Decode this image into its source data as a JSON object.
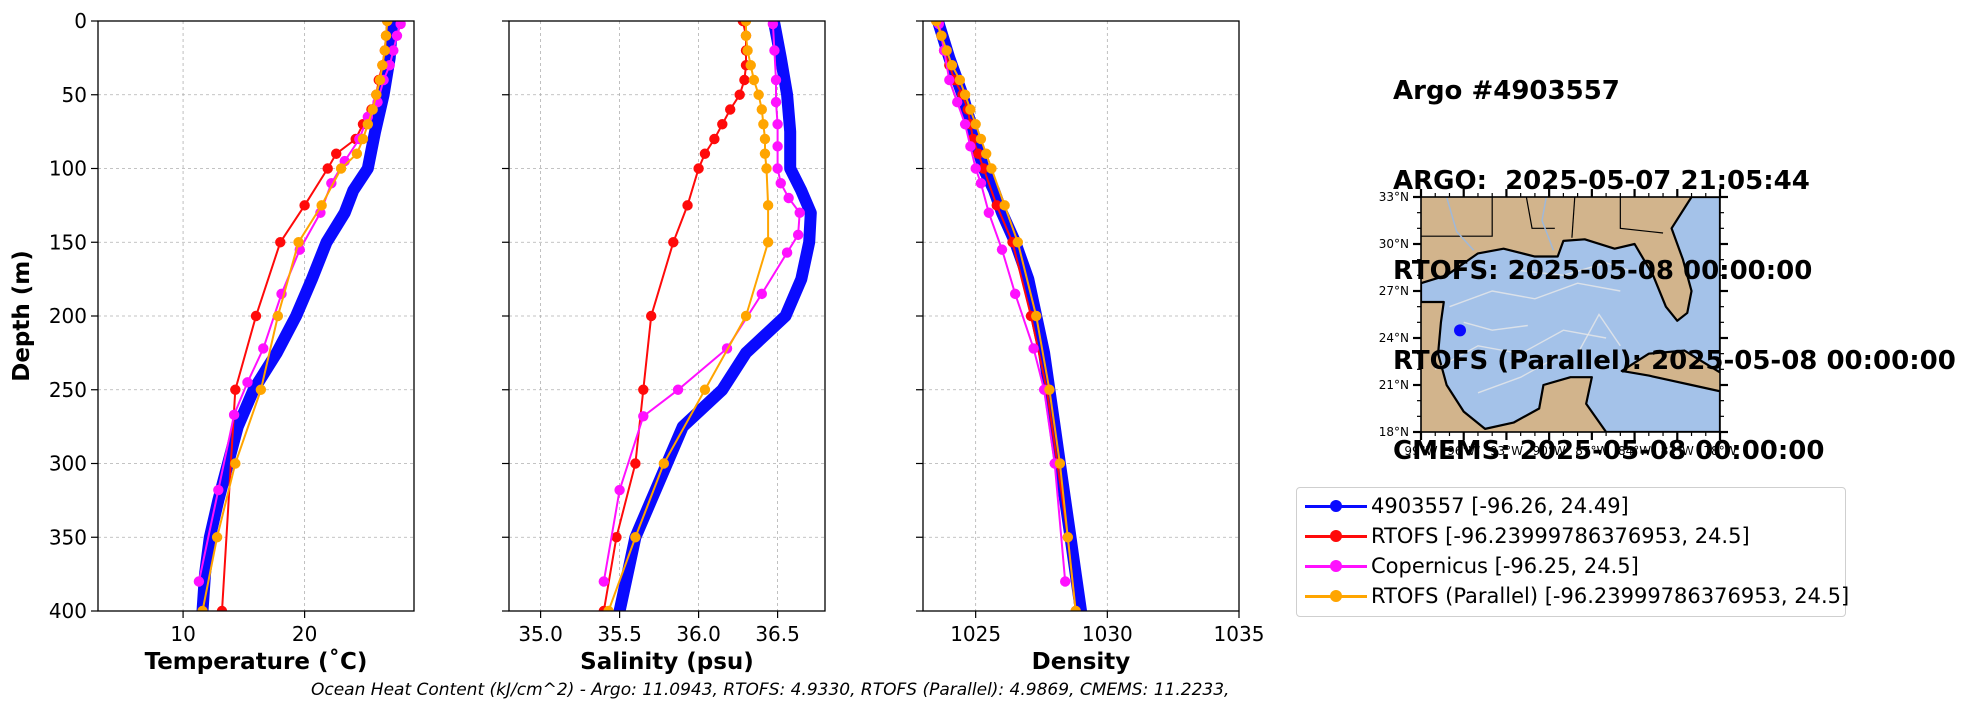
{
  "info": {
    "line1": "Argo #4903557",
    "line2": "ARGO:  2025-05-07 21:05:44",
    "line3": "RTOFS: 2025-05-08 00:00:00",
    "line4": "RTOFS (Parallel): 2025-05-08 00:00:00",
    "line5": "CMEMS: 2025-05-08 00:00:00"
  },
  "footer": "Ocean Heat Content (kJ/cm^2) - Argo: 11.0943,  RTOFS: 4.9330,  RTOFS (Parallel): 4.9869,  CMEMS: 11.2233,",
  "colors": {
    "argo": "#0a0aff",
    "rtofs": "#ff0a0a",
    "copernicus": "#ff10ff",
    "parallel": "#ffa500",
    "land": "#d2b48c",
    "water": "#a4c2e9"
  },
  "legend": [
    {
      "label": "4903557 [-96.26, 24.49]",
      "color": "#0a0aff"
    },
    {
      "label": "RTOFS [-96.23999786376953, 24.5]",
      "color": "#ff0a0a"
    },
    {
      "label": "Copernicus [-96.25, 24.5]",
      "color": "#ff10ff"
    },
    {
      "label": "RTOFS (Parallel) [-96.23999786376953, 24.5]",
      "color": "#ffa500"
    }
  ],
  "map": {
    "lat_labels": [
      "33°N",
      "30°N",
      "27°N",
      "24°N",
      "21°N",
      "18°N"
    ],
    "lon_labels": [
      "99°W",
      "96°W",
      "93°W",
      "90°W",
      "87°W",
      "84°W",
      "81°W",
      "78°W"
    ],
    "float_lon": -96.26,
    "float_lat": 24.49
  },
  "chart_data": [
    {
      "type": "line",
      "xlabel": "Temperature (˚C)",
      "ylabel": "Depth (m)",
      "xlim": [
        3,
        29
      ],
      "ylim": [
        400,
        0
      ],
      "xticks": [
        10,
        20
      ],
      "yticks": [
        0,
        50,
        100,
        150,
        200,
        250,
        300,
        350,
        400
      ],
      "grid": true,
      "series": [
        {
          "name": "4903557 [-96.26, 24.49]",
          "key": "argo",
          "dense": true,
          "x": [
            27.2,
            27.0,
            26.5,
            25.8,
            25.2,
            24.0,
            23.3,
            21.8,
            20.6,
            19.3,
            17.7,
            15.8,
            14.5,
            13.7,
            12.9,
            12.2,
            11.8,
            11.6
          ],
          "y": [
            2,
            25,
            50,
            75,
            100,
            115,
            130,
            150,
            175,
            200,
            225,
            250,
            275,
            300,
            325,
            350,
            375,
            400
          ]
        },
        {
          "name": "RTOFS [-96.23999786376953, 24.5]",
          "key": "rtofs",
          "x": [
            26.8,
            26.7,
            26.6,
            26.4,
            26.1,
            25.9,
            25.5,
            24.8,
            24.2,
            22.6,
            21.9,
            20.0,
            18.0,
            16.0,
            14.3,
            13.2
          ],
          "y": [
            0,
            10,
            20,
            30,
            40,
            50,
            60,
            70,
            80,
            90,
            100,
            125,
            150,
            200,
            250,
            400
          ]
        },
        {
          "name": "Copernicus [-96.25, 24.5]",
          "key": "copernicus",
          "x": [
            27.9,
            27.6,
            27.3,
            27.0,
            26.5,
            26.0,
            25.2,
            24.5,
            23.3,
            22.2,
            21.3,
            19.6,
            18.1,
            16.6,
            15.3,
            14.2,
            12.9,
            11.3
          ],
          "y": [
            2,
            10,
            20,
            30,
            40,
            55,
            65,
            80,
            95,
            110,
            130,
            155,
            185,
            222,
            245,
            267,
            318,
            380
          ]
        },
        {
          "name": "RTOFS (Parallel) [-96.23999786376953, 24.5]",
          "key": "parallel",
          "x": [
            26.8,
            26.7,
            26.6,
            26.4,
            26.2,
            25.9,
            25.6,
            25.2,
            24.8,
            24.3,
            23.0,
            21.4,
            19.5,
            17.8,
            16.4,
            14.3,
            12.8,
            11.6
          ],
          "y": [
            0,
            10,
            20,
            30,
            40,
            50,
            60,
            70,
            80,
            90,
            100,
            125,
            150,
            200,
            250,
            300,
            350,
            400
          ]
        }
      ]
    },
    {
      "type": "line",
      "xlabel": "Salinity (psu)",
      "ylabel": "",
      "xlim": [
        34.8,
        36.8
      ],
      "ylim": [
        400,
        0
      ],
      "xticks": [
        35.0,
        35.5,
        36.0,
        36.5
      ],
      "yticks": [
        0,
        50,
        100,
        150,
        200,
        250,
        300,
        350,
        400
      ],
      "grid": true,
      "series": [
        {
          "name": "4903557 [-96.26, 24.49]",
          "key": "argo",
          "dense": true,
          "x": [
            36.48,
            36.52,
            36.56,
            36.58,
            36.58,
            36.65,
            36.71,
            36.7,
            36.65,
            36.55,
            36.3,
            36.15,
            35.9,
            35.8,
            35.7,
            35.6,
            35.55,
            35.5
          ],
          "y": [
            2,
            25,
            50,
            75,
            100,
            115,
            130,
            150,
            175,
            200,
            225,
            250,
            275,
            300,
            325,
            350,
            375,
            400
          ]
        },
        {
          "name": "RTOFS [-96.23999786376953, 24.5]",
          "key": "rtofs",
          "x": [
            36.28,
            36.3,
            36.3,
            36.3,
            36.29,
            36.26,
            36.2,
            36.15,
            36.1,
            36.04,
            36.0,
            35.93,
            35.84,
            35.7,
            35.65,
            35.6,
            35.48,
            35.4
          ],
          "y": [
            0,
            10,
            20,
            30,
            40,
            50,
            60,
            70,
            80,
            90,
            100,
            125,
            150,
            200,
            250,
            300,
            350,
            400
          ]
        },
        {
          "name": "Copernicus [-96.25, 24.5]",
          "key": "copernicus",
          "x": [
            36.47,
            36.48,
            36.49,
            36.49,
            36.5,
            36.5,
            36.5,
            36.52,
            36.57,
            36.64,
            36.63,
            36.56,
            36.4,
            36.18,
            35.87,
            35.65,
            35.5,
            35.4
          ],
          "y": [
            2,
            20,
            40,
            55,
            70,
            85,
            100,
            110,
            120,
            130,
            145,
            157,
            185,
            222,
            250,
            268,
            318,
            380
          ]
        },
        {
          "name": "RTOFS (Parallel) [-96.23999786376953, 24.5]",
          "key": "parallel",
          "x": [
            36.3,
            36.3,
            36.31,
            36.33,
            36.35,
            36.38,
            36.4,
            36.41,
            36.42,
            36.42,
            36.43,
            36.44,
            36.44,
            36.3,
            36.04,
            35.78,
            35.6,
            35.43
          ],
          "y": [
            0,
            10,
            20,
            30,
            40,
            50,
            60,
            70,
            80,
            90,
            100,
            125,
            150,
            200,
            250,
            300,
            350,
            400
          ]
        }
      ]
    },
    {
      "type": "line",
      "xlabel": "Density",
      "ylabel": "",
      "xlim": [
        1023,
        1035
      ],
      "ylim": [
        400,
        0
      ],
      "xticks": [
        1025,
        1030,
        1035
      ],
      "yticks": [
        0,
        50,
        100,
        150,
        200,
        250,
        300,
        350,
        400
      ],
      "grid": true,
      "series": [
        {
          "name": "4903557 [-96.26, 24.49]",
          "key": "argo",
          "dense": true,
          "x": [
            1023.6,
            1024.0,
            1024.5,
            1024.9,
            1025.3,
            1025.7,
            1026.0,
            1026.5,
            1027.0,
            1027.3,
            1027.6,
            1027.8,
            1028.0,
            1028.2,
            1028.4,
            1028.6,
            1028.8,
            1029.0
          ],
          "y": [
            2,
            25,
            50,
            75,
            100,
            115,
            130,
            150,
            175,
            200,
            225,
            250,
            275,
            300,
            325,
            350,
            375,
            400
          ]
        },
        {
          "name": "RTOFS [-96.23999786376953, 24.5]",
          "key": "rtofs",
          "x": [
            1023.6,
            1023.7,
            1023.8,
            1024.0,
            1024.2,
            1024.5,
            1024.7,
            1024.8,
            1024.9,
            1025.1,
            1025.3,
            1025.8,
            1026.4,
            1027.1,
            1027.7,
            1028.1,
            1028.5,
            1028.8
          ],
          "y": [
            0,
            10,
            20,
            30,
            40,
            50,
            60,
            70,
            80,
            90,
            100,
            125,
            150,
            200,
            250,
            300,
            350,
            400
          ]
        },
        {
          "name": "Copernicus [-96.25, 24.5]",
          "key": "copernicus",
          "x": [
            1023.6,
            1023.8,
            1024.0,
            1024.3,
            1024.6,
            1024.8,
            1025.0,
            1025.2,
            1025.5,
            1026.0,
            1026.5,
            1027.2,
            1027.6,
            1028.0,
            1028.4
          ],
          "y": [
            2,
            20,
            40,
            55,
            70,
            85,
            100,
            110,
            130,
            155,
            185,
            222,
            250,
            300,
            380
          ]
        },
        {
          "name": "RTOFS (Parallel) [-96.23999786376953, 24.5]",
          "key": "parallel",
          "x": [
            1023.5,
            1023.7,
            1023.9,
            1024.1,
            1024.4,
            1024.6,
            1024.8,
            1025.0,
            1025.2,
            1025.4,
            1025.6,
            1026.1,
            1026.6,
            1027.3,
            1027.8,
            1028.2,
            1028.5,
            1028.8
          ],
          "y": [
            0,
            10,
            20,
            30,
            40,
            50,
            60,
            70,
            80,
            90,
            100,
            125,
            150,
            200,
            250,
            300,
            350,
            400
          ]
        }
      ]
    }
  ]
}
